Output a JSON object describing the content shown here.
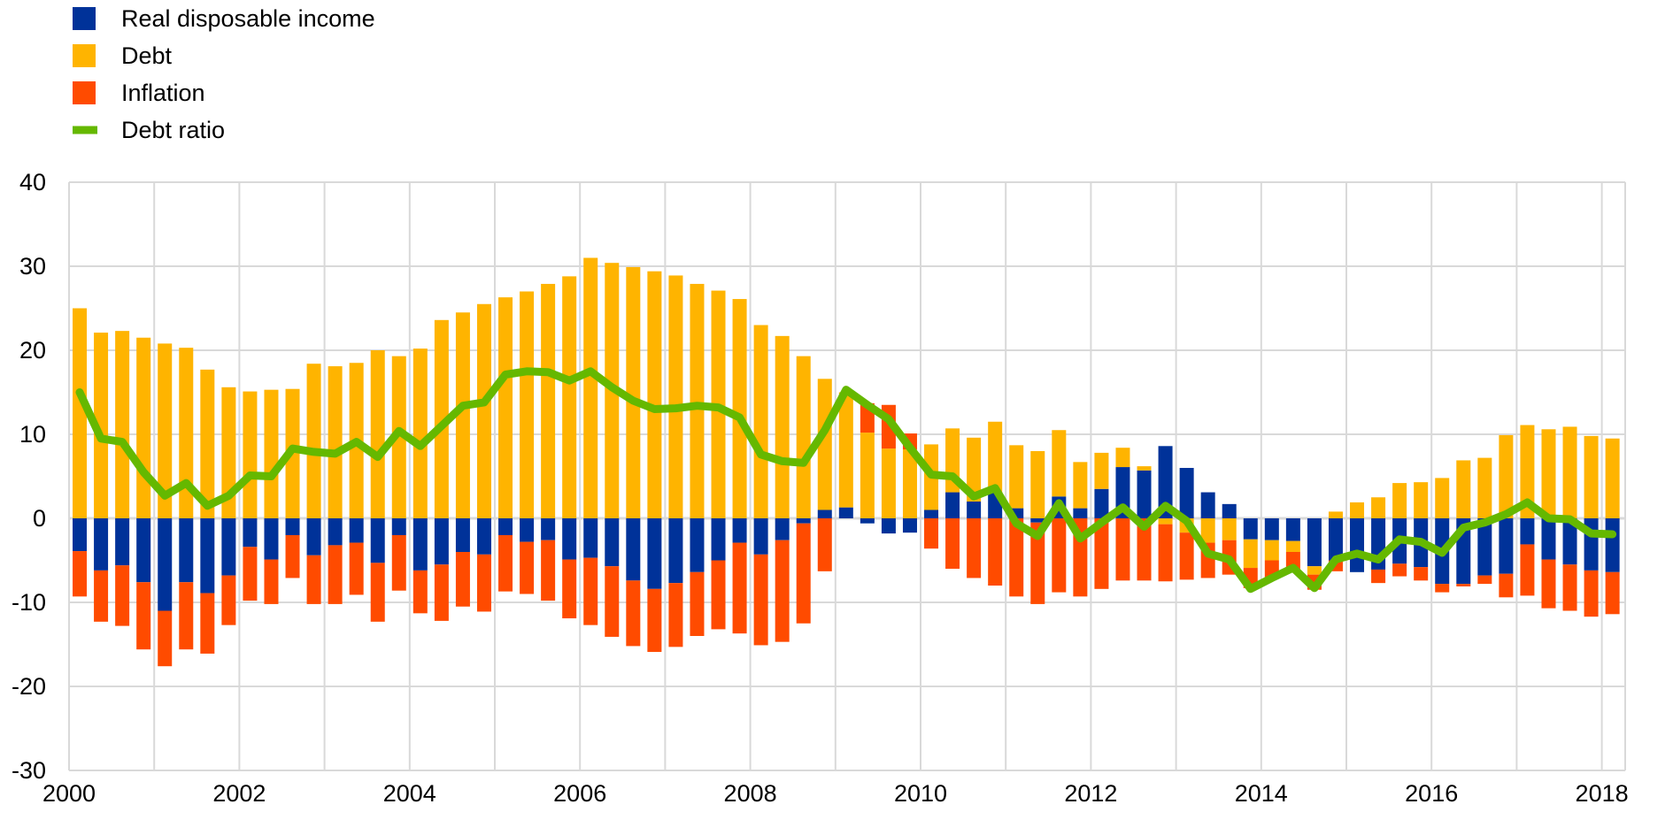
{
  "chart_data": {
    "type": "bar",
    "stacked": true,
    "title": "",
    "xlabel": "",
    "ylabel": "",
    "ylim": [
      -30,
      40
    ],
    "yticks": [
      "40",
      "30",
      "20",
      "10",
      "0",
      "-10",
      "-20",
      "-30"
    ],
    "ytick_values": [
      40,
      30,
      20,
      10,
      0,
      -10,
      -20,
      -30
    ],
    "xticks": [
      "2000",
      "2002",
      "2004",
      "2006",
      "2008",
      "2010",
      "2012",
      "2014",
      "2016",
      "2018"
    ],
    "xtick_values": [
      2000,
      2002,
      2004,
      2006,
      2008,
      2010,
      2012,
      2014,
      2016,
      2018
    ],
    "x_start": "2000Q1",
    "x_end": "2018Q1",
    "frequency": "quarterly",
    "grid": true,
    "legend_position": "top-left",
    "series": [
      {
        "name": "Real disposable income",
        "kind": "bar",
        "color": "#003299",
        "values": [
          -3.9,
          -6.2,
          -5.6,
          -7.6,
          -11,
          -7.6,
          -8.9,
          -6.8,
          -3.4,
          -4.9,
          -2,
          -4.4,
          -3.2,
          -2.9,
          -5.3,
          -2,
          -6.2,
          -5.5,
          -4,
          -4.3,
          -2,
          -2.8,
          -2.6,
          -4.9,
          -4.7,
          -5.7,
          -7.4,
          -8.4,
          -7.7,
          -6.4,
          -5,
          -2.9,
          -4.3,
          -2.6,
          -0.6,
          1,
          1.3,
          -0.6,
          -1.8,
          -1.7,
          1,
          3.1,
          2,
          3.1,
          1.2,
          -0.5,
          2.6,
          1.2,
          3.5,
          6.1,
          5.7,
          8.6,
          6,
          3.1,
          1.7,
          -2.5,
          -2.6,
          -2.7,
          -5.7,
          -5,
          -6.4,
          -6.1,
          -5.4,
          -5.8,
          -7.8,
          -7.8,
          -6.8,
          -6.6,
          -3.1,
          -4.9,
          -5.5,
          -6.2,
          -6.4
        ]
      },
      {
        "name": "Debt",
        "kind": "bar",
        "color": "#FFB400",
        "values": [
          25,
          22.1,
          22.3,
          21.5,
          20.8,
          20.3,
          17.7,
          15.6,
          15.1,
          15.3,
          15.4,
          18.4,
          18.1,
          18.5,
          20,
          19.3,
          20.2,
          23.6,
          24.5,
          25.5,
          26.3,
          27,
          27.9,
          28.8,
          31,
          30.4,
          29.9,
          29.4,
          28.9,
          27.9,
          27.1,
          26.1,
          23,
          21.7,
          19.3,
          15.6,
          13.7,
          10.2,
          8.3,
          8.2,
          7.8,
          7.6,
          7.6,
          8.4,
          7.5,
          8,
          7.9,
          5.5,
          4.3,
          2.3,
          0.5,
          -0.7,
          -1.7,
          -2.9,
          -2.6,
          -3.4,
          -2.4,
          -1.3,
          -1,
          0.8,
          1.9,
          2.5,
          4.2,
          4.3,
          4.8,
          6.9,
          7.2,
          9.9,
          11.1,
          10.6,
          10.9,
          9.8,
          9.5
        ]
      },
      {
        "name": "Inflation",
        "kind": "bar",
        "color": "#FF4B00",
        "values": [
          -5.4,
          -6.1,
          -7.2,
          -8,
          -6.6,
          -8,
          -7.2,
          -5.9,
          -6.4,
          -5.3,
          -5.1,
          -5.8,
          -7,
          -6.2,
          -7,
          -6.6,
          -5.1,
          -6.7,
          -6.5,
          -6.8,
          -6.7,
          -6.2,
          -7.2,
          -7,
          -8,
          -8.4,
          -7.8,
          -7.5,
          -7.6,
          -7.6,
          -8.2,
          -10.8,
          -10.8,
          -12.1,
          -11.9,
          -6.3,
          0,
          3.5,
          5.2,
          1.9,
          -3.6,
          -6,
          -7.1,
          -8,
          -9.3,
          -9.7,
          -8.8,
          -9.3,
          -8.4,
          -7.4,
          -7.4,
          -6.8,
          -5.6,
          -4.2,
          -4.1,
          -2.4,
          -2.2,
          -2.4,
          -1.8,
          -1.3,
          0,
          -1.6,
          -1.5,
          -1.6,
          -1,
          -0.3,
          -1,
          -2.8,
          -6.1,
          -5.8,
          -5.5,
          -5.5,
          -5
        ]
      },
      {
        "name": "Debt ratio",
        "kind": "line",
        "color": "#65B800",
        "values": [
          15,
          9.5,
          9.1,
          5.5,
          2.7,
          4.2,
          1.5,
          2.7,
          5.1,
          5,
          8.3,
          7.9,
          7.7,
          9.1,
          7.3,
          10.4,
          8.6,
          11,
          13.4,
          13.8,
          17.1,
          17.5,
          17.4,
          16.4,
          17.5,
          15.6,
          14,
          13,
          13.1,
          13.4,
          13.2,
          12,
          7.6,
          6.8,
          6.6,
          10.5,
          15.3,
          13.5,
          11.8,
          8.4,
          5.2,
          5,
          2.6,
          3.6,
          -0.6,
          -2.1,
          1.8,
          -2.4,
          -0.5,
          1.3,
          -1,
          1.5,
          -0.3,
          -4.2,
          -4.9,
          -8.4,
          -7.1,
          -5.9,
          -8.3,
          -4.9,
          -4.2,
          -4.9,
          -2.5,
          -2.8,
          -4.1,
          -1.1,
          -0.5,
          0.5,
          1.9,
          0,
          -0.1,
          -1.8,
          -1.9
        ]
      }
    ]
  }
}
